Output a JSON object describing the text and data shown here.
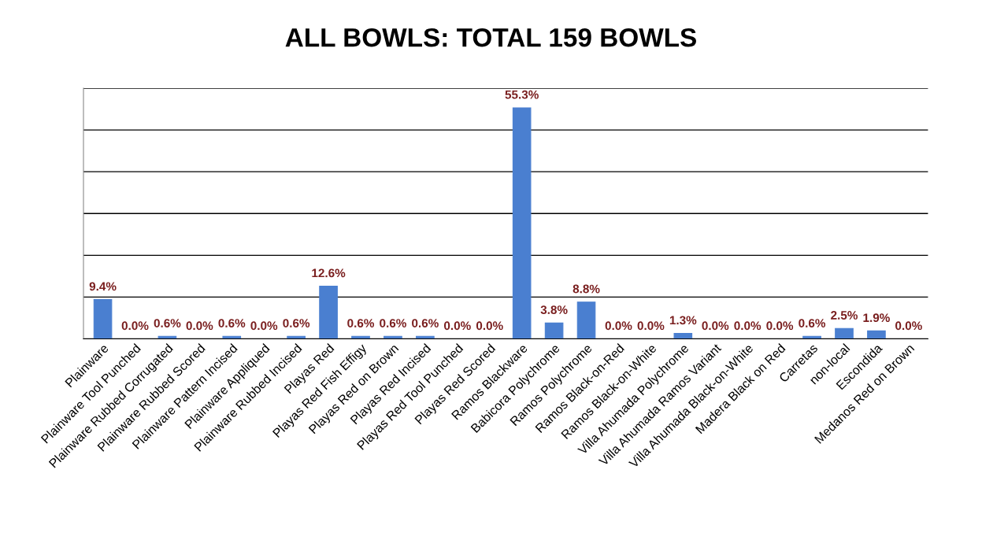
{
  "chart_data": {
    "type": "bar",
    "title": "ALL BOWLS: TOTAL 159 BOWLS",
    "categories": [
      "Plainware",
      "Plainware Tool Punched",
      "Plainware Rubbed Corrugated",
      "Plainware Rubbed Scored",
      "Plainware Pattern Incised",
      "Plainware Appliqued",
      "Plainware Rubbed Incised",
      "Playas Red",
      "Playas Red Fish Effigy",
      "Playas Red on Brown",
      "Playas Red Incised",
      "Playas Red Tool Punched",
      "Playas Red Scored",
      "Ramos Blackware",
      "Babicora Polychrome",
      "Ramos Polychrome",
      "Ramos Black-on-Red",
      "Ramos Black-on-White",
      "Villa Ahumada Polychrome",
      "Villa Ahumada Ramos Variant",
      "Villa Ahumada Black-on-White",
      "Madera Black on Red",
      "Carretas",
      "non-local",
      "Escondida",
      "Medanos Red on Brown"
    ],
    "values": [
      9.4,
      0.0,
      0.6,
      0.0,
      0.6,
      0.0,
      0.6,
      12.6,
      0.6,
      0.6,
      0.6,
      0.0,
      0.0,
      55.3,
      3.8,
      8.8,
      0.0,
      0.0,
      1.3,
      0.0,
      0.0,
      0.0,
      0.6,
      2.5,
      1.9,
      0.0
    ],
    "value_labels": [
      "9.4%",
      "0.0%",
      "0.6%",
      "0.0%",
      "0.6%",
      "0.0%",
      "0.6%",
      "12.6%",
      "0.6%",
      "0.6%",
      "0.6%",
      "0.0%",
      "0.0%",
      "55.3%",
      "3.8%",
      "8.8%",
      "0.0%",
      "0.0%",
      "1.3%",
      "0.0%",
      "0.0%",
      "0.0%",
      "0.6%",
      "2.5%",
      "1.9%",
      "0.0%"
    ],
    "color": "#4a7fd0",
    "ylim": [
      0,
      60
    ],
    "yticks": [
      {
        "value": 0,
        "label": null
      },
      {
        "value": 10,
        "label": null
      },
      {
        "value": 20,
        "label": null
      },
      {
        "value": 30,
        "label": null
      },
      {
        "value": 40,
        "label": null
      },
      {
        "value": 50,
        "label": null
      },
      {
        "value": 60,
        "label": null
      }
    ],
    "tick_labels": "x",
    "grid": "y",
    "legend": false
  }
}
